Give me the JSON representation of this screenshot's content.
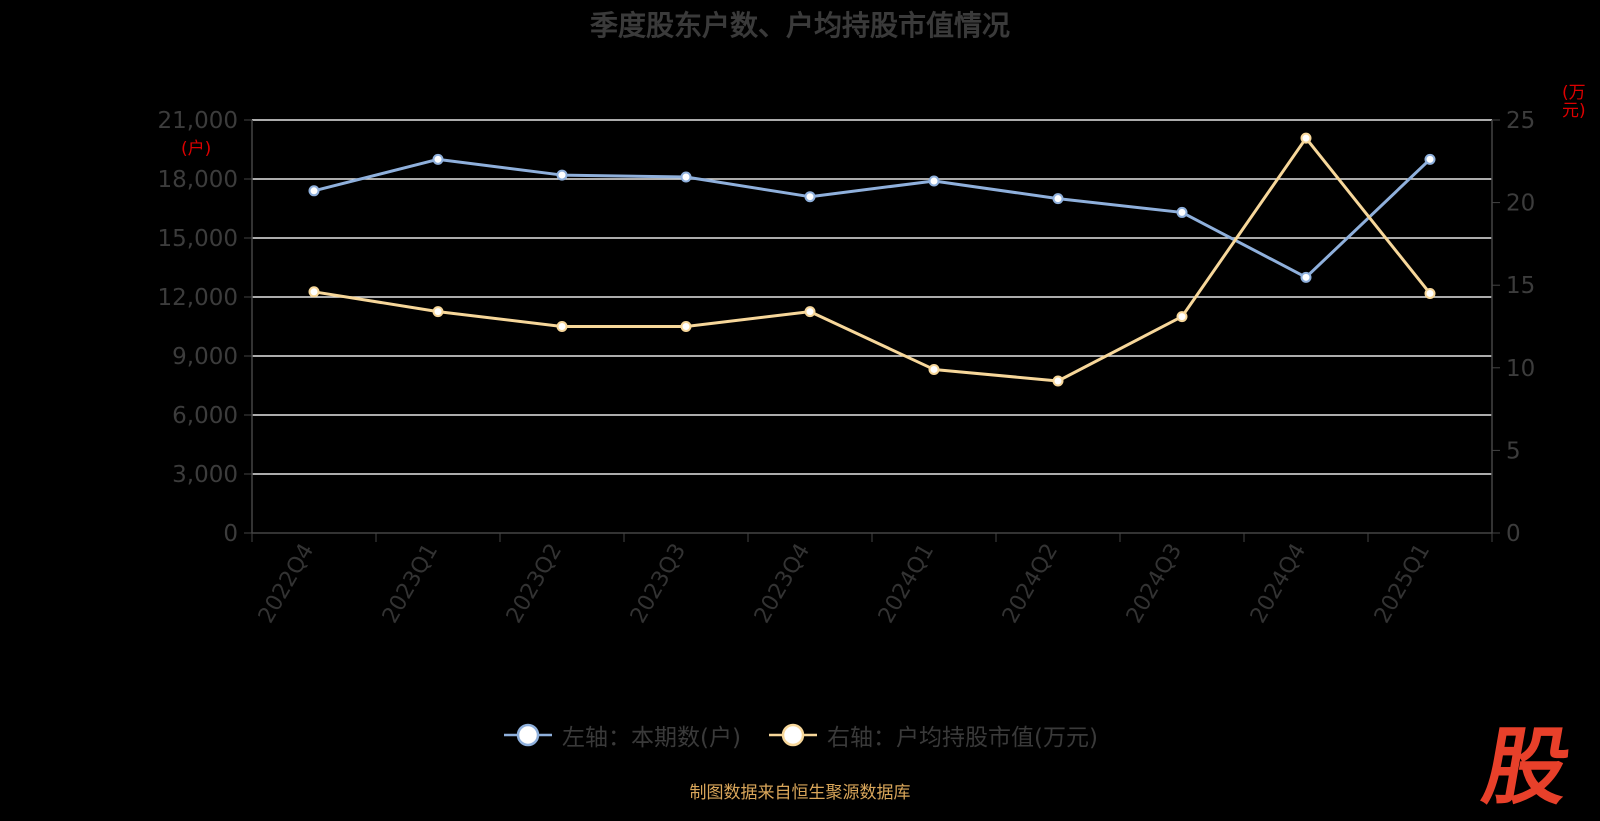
{
  "title": "季度股东户数、户均持股市值情况",
  "source": "制图数据来自恒生聚源数据库",
  "logo_text": "股",
  "units": {
    "left": "(户)",
    "right": "(万元)"
  },
  "legend": [
    {
      "label": "左轴：本期数(户)",
      "color": "#8fb0dc"
    },
    {
      "label": "右轴：户均持股市值(万元)",
      "color": "#f7d79a"
    }
  ],
  "chart_data": {
    "type": "line",
    "categories": [
      "2022Q4",
      "2023Q1",
      "2023Q2",
      "2023Q3",
      "2023Q4",
      "2024Q1",
      "2024Q2",
      "2024Q3",
      "2024Q4",
      "2025Q1"
    ],
    "series": [
      {
        "name": "左轴：本期数(户)",
        "axis": "left",
        "color": "#8fb0dc",
        "values": [
          17400,
          19000,
          18200,
          18100,
          17100,
          17900,
          17000,
          16300,
          13000,
          19000
        ]
      },
      {
        "name": "右轴：户均持股市值(万元)",
        "axis": "right",
        "color": "#f7d79a",
        "values": [
          14.6,
          13.4,
          12.5,
          12.5,
          13.4,
          9.9,
          9.2,
          13.1,
          23.9,
          14.5
        ]
      }
    ],
    "y_left": {
      "min": 0,
      "max": 21000,
      "ticks": [
        "0",
        "3,000",
        "6,000",
        "9,000",
        "12,000",
        "15,000",
        "18,000",
        "21,000"
      ]
    },
    "y_right": {
      "min": 0,
      "max": 25,
      "ticks": [
        "0",
        "5",
        "10",
        "15",
        "20",
        "25"
      ]
    },
    "grid": true,
    "legend_position": "bottom"
  }
}
